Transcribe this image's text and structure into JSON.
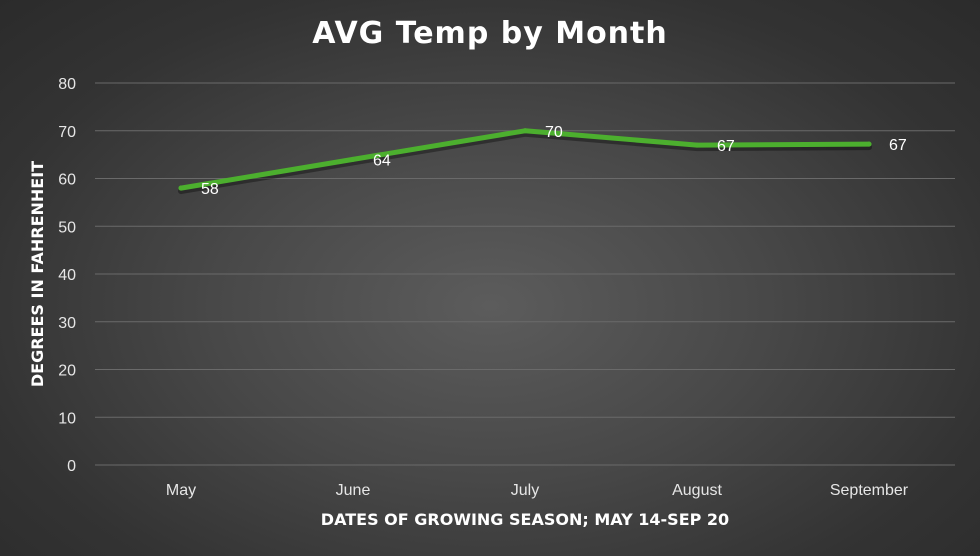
{
  "chart_data": {
    "type": "line",
    "title": "AVG Temp by Month",
    "xlabel": "DATES OF GROWING SEASON; MAY 14-SEP 20",
    "ylabel": "DEGREES IN FAHRENHEIT",
    "categories": [
      "May",
      "June",
      "July",
      "August",
      "September"
    ],
    "series": [
      {
        "values": [
          58,
          64,
          70,
          67,
          67.2
        ],
        "labels": [
          "58",
          "64",
          "70",
          "67",
          "67"
        ]
      }
    ],
    "ylim": [
      0,
      80
    ],
    "yticks": [
      0,
      10,
      20,
      30,
      40,
      50,
      60,
      70,
      80
    ],
    "grid": true,
    "legend": "none",
    "colors": {
      "line": "#4caf2e",
      "background": "#404040",
      "text": "#ffffff",
      "grid": "#6a6a6a"
    }
  }
}
